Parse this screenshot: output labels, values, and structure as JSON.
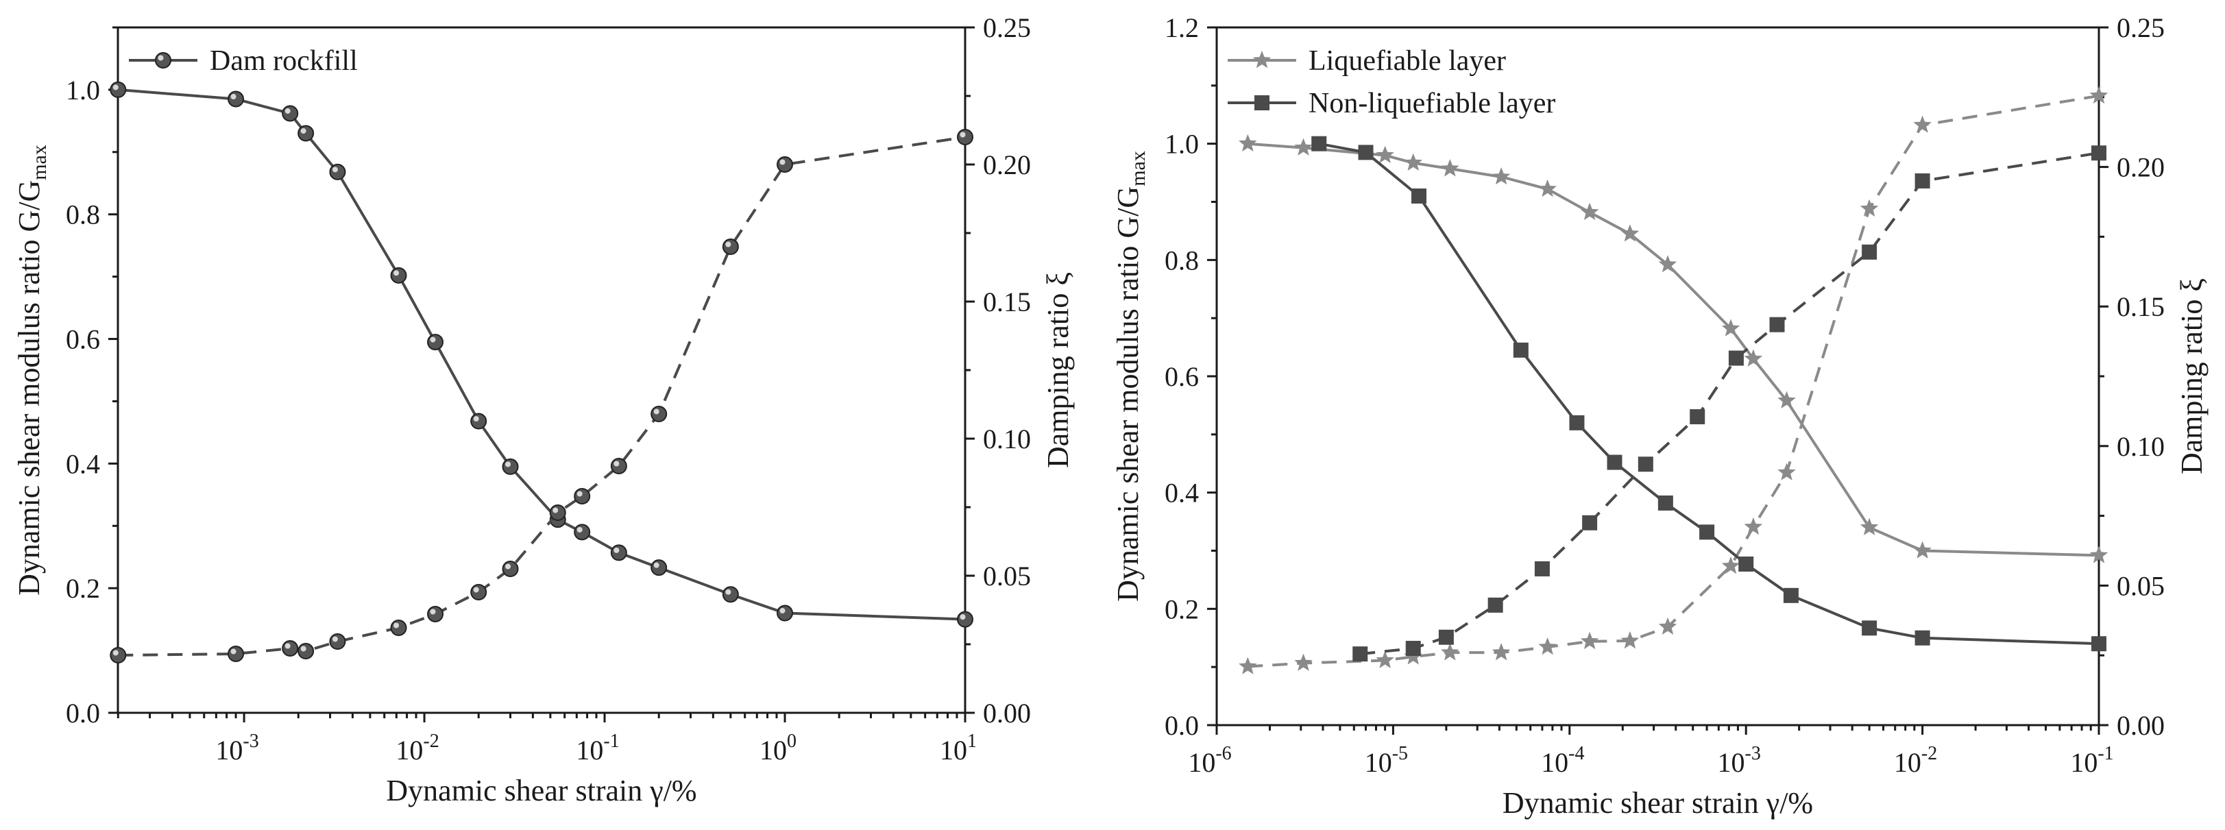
{
  "chart_data": [
    {
      "type": "line",
      "name": "left-chart",
      "xlabel": "Dynamic shear strain γ/%",
      "ylabel_left": "Dynamic shear modulus ratio G/G",
      "ylabel_left_sub": "max",
      "ylabel_right": "Damping ratio ξ",
      "x_scale": "log",
      "xlim_log10": [
        -3.7,
        1
      ],
      "ylim_left": [
        0,
        1.1
      ],
      "ylim_right": [
        0,
        0.25
      ],
      "x_ticks": [
        {
          "exp": -3,
          "label": "10",
          "sup": "-3"
        },
        {
          "exp": -2,
          "label": "10",
          "sup": "-2"
        },
        {
          "exp": -1,
          "label": "10",
          "sup": "-1"
        },
        {
          "exp": 0,
          "label": "10",
          "sup": "0"
        },
        {
          "exp": 1,
          "label": "10",
          "sup": "1"
        }
      ],
      "y_left_ticks": [
        {
          "v": 0,
          "label": "0.0"
        },
        {
          "v": 0.2,
          "label": "0.2"
        },
        {
          "v": 0.4,
          "label": "0.4"
        },
        {
          "v": 0.6,
          "label": "0.6"
        },
        {
          "v": 0.8,
          "label": "0.8"
        },
        {
          "v": 1.0,
          "label": "1.0"
        }
      ],
      "y_right_ticks": [
        {
          "v": 0,
          "label": "0.00"
        },
        {
          "v": 0.05,
          "label": "0.05"
        },
        {
          "v": 0.1,
          "label": "0.10"
        },
        {
          "v": 0.15,
          "label": "0.15"
        },
        {
          "v": 0.2,
          "label": "0.20"
        },
        {
          "v": 0.25,
          "label": "0.25"
        }
      ],
      "legend": [
        {
          "name": "Dam rockfill",
          "marker": "sphere",
          "color": "#4a4a4a"
        }
      ],
      "series": [
        {
          "name": "Dam rockfill",
          "axis": "left",
          "marker": "sphere",
          "dash": false,
          "color": "#4a4a4a",
          "x": [
            0.0002,
            0.0009,
            0.0018,
            0.0022,
            0.0033,
            0.0072,
            0.0115,
            0.02,
            0.03,
            0.055,
            0.075,
            0.12,
            0.2,
            0.5,
            1.0,
            10
          ],
          "y": [
            1.0,
            0.985,
            0.962,
            0.93,
            0.868,
            0.702,
            0.595,
            0.468,
            0.395,
            0.31,
            0.29,
            0.257,
            0.233,
            0.19,
            0.16,
            0.15
          ]
        },
        {
          "name": "Dam rockfill damping",
          "axis": "right",
          "marker": "sphere",
          "dash": true,
          "color": "#4a4a4a",
          "x": [
            0.0002,
            0.0009,
            0.0018,
            0.0022,
            0.0033,
            0.0072,
            0.0115,
            0.02,
            0.03,
            0.055,
            0.075,
            0.12,
            0.2,
            0.5,
            1.0,
            10
          ],
          "y": [
            0.021,
            0.0215,
            0.0235,
            0.0225,
            0.026,
            0.031,
            0.036,
            0.044,
            0.0525,
            0.073,
            0.079,
            0.09,
            0.109,
            0.17,
            0.2,
            0.21
          ]
        }
      ]
    },
    {
      "type": "line",
      "name": "right-chart",
      "xlabel": "Dynamic shear strain γ/%",
      "ylabel_left": "Dynamic shear modulus ratio G/G",
      "ylabel_left_sub": "max",
      "ylabel_right": "Damping ratio ξ",
      "x_scale": "log",
      "xlim_log10": [
        -6,
        -1
      ],
      "ylim_left": [
        0,
        1.2
      ],
      "ylim_right": [
        0,
        0.25
      ],
      "x_ticks": [
        {
          "exp": -6,
          "label": "10",
          "sup": "-6"
        },
        {
          "exp": -5,
          "label": "10",
          "sup": "-5"
        },
        {
          "exp": -4,
          "label": "10",
          "sup": "-4"
        },
        {
          "exp": -3,
          "label": "10",
          "sup": "-3"
        },
        {
          "exp": -2,
          "label": "10",
          "sup": "-2"
        },
        {
          "exp": -1,
          "label": "10",
          "sup": "-1"
        }
      ],
      "y_left_ticks": [
        {
          "v": 0,
          "label": "0.0"
        },
        {
          "v": 0.2,
          "label": "0.2"
        },
        {
          "v": 0.4,
          "label": "0.4"
        },
        {
          "v": 0.6,
          "label": "0.6"
        },
        {
          "v": 0.8,
          "label": "0.8"
        },
        {
          "v": 1.0,
          "label": "1.0"
        },
        {
          "v": 1.2,
          "label": "1.2"
        }
      ],
      "y_right_ticks": [
        {
          "v": 0,
          "label": "0.00"
        },
        {
          "v": 0.05,
          "label": "0.05"
        },
        {
          "v": 0.1,
          "label": "0.10"
        },
        {
          "v": 0.15,
          "label": "0.15"
        },
        {
          "v": 0.2,
          "label": "0.20"
        },
        {
          "v": 0.25,
          "label": "0.25"
        }
      ],
      "legend": [
        {
          "name": "Liquefiable layer",
          "marker": "star",
          "color": "#8a8a8a"
        },
        {
          "name": "Non-liquefiable layer",
          "marker": "square",
          "color": "#4a4a4a"
        }
      ],
      "series": [
        {
          "name": "Liquefiable layer",
          "axis": "left",
          "marker": "star",
          "dash": false,
          "color": "#8a8a8a",
          "x": [
            1.5e-06,
            3.1e-06,
            9e-06,
            1.3e-05,
            2.1e-05,
            4.1e-05,
            7.5e-05,
            0.00013,
            0.00022,
            0.00036,
            0.00082,
            0.0011,
            0.0017,
            0.005,
            0.01,
            0.1
          ],
          "y": [
            1.0,
            0.993,
            0.98,
            0.967,
            0.957,
            0.943,
            0.922,
            0.882,
            0.845,
            0.792,
            0.682,
            0.63,
            0.558,
            0.34,
            0.3,
            0.292
          ]
        },
        {
          "name": "Liquefiable layer damping",
          "axis": "right",
          "marker": "star",
          "dash": true,
          "color": "#8a8a8a",
          "x": [
            1.5e-06,
            3.1e-06,
            9e-06,
            1.3e-05,
            2.1e-05,
            4.1e-05,
            7.5e-05,
            0.00013,
            0.00022,
            0.00036,
            0.00082,
            0.0011,
            0.0017,
            0.005,
            0.01,
            0.1
          ],
          "y": [
            0.021,
            0.0222,
            0.0232,
            0.0245,
            0.026,
            0.026,
            0.028,
            0.03,
            0.0302,
            0.0352,
            0.057,
            0.071,
            0.0905,
            0.185,
            0.215,
            0.2255
          ]
        },
        {
          "name": "Non-liquefiable layer",
          "axis": "left",
          "marker": "square",
          "dash": false,
          "color": "#4a4a4a",
          "x": [
            3.8e-06,
            7e-06,
            1.4e-05,
            5.3e-05,
            0.00011,
            0.00018,
            0.00035,
            0.0006,
            0.001,
            0.0018,
            0.005,
            0.01,
            0.1
          ],
          "y": [
            1.0,
            0.985,
            0.91,
            0.645,
            0.52,
            0.452,
            0.382,
            0.332,
            0.277,
            0.223,
            0.167,
            0.15,
            0.14
          ]
        },
        {
          "name": "Non-liquefiable layer damping",
          "axis": "right",
          "marker": "square",
          "dash": true,
          "color": "#4a4a4a",
          "x": [
            6.5e-06,
            1.3e-05,
            2e-05,
            3.8e-05,
            7e-05,
            0.00013,
            0.00027,
            0.00053,
            0.00088,
            0.0015,
            0.005,
            0.01,
            0.1
          ],
          "y": [
            0.0255,
            0.0275,
            0.0315,
            0.043,
            0.056,
            0.0725,
            0.0935,
            0.1105,
            0.1315,
            0.1435,
            0.1695,
            0.195,
            0.205
          ]
        }
      ]
    }
  ]
}
